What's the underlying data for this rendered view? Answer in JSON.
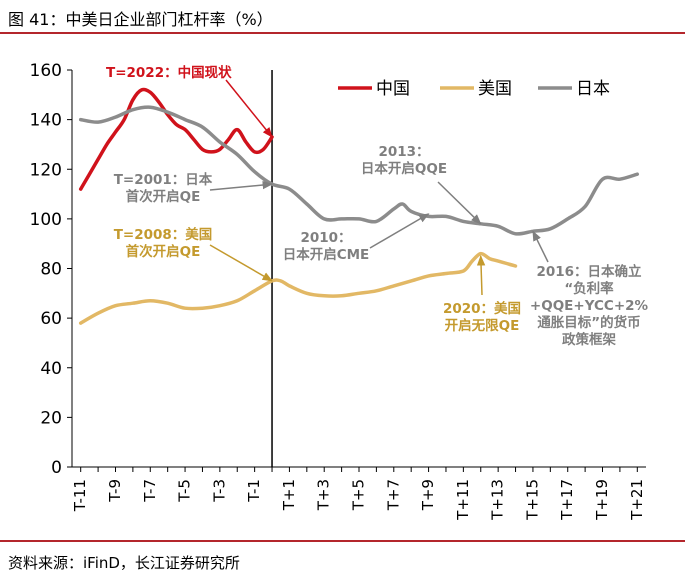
{
  "figure_title": "图 41：中美日企业部门杠杆率（%）",
  "source": "资料来源：iFinD，长江证券研究所",
  "colors": {
    "china": "#d0121b",
    "us": "#e2b865",
    "japan": "#8c8c8c",
    "us_annotation": "#c49a2e",
    "china_annotation": "#d0121b",
    "japan_annotation": "#7f7f7f",
    "rule": "#b4262c"
  },
  "chart_data": {
    "type": "line",
    "title": "中美日企业部门杠杆率（%）",
    "xlabel": "",
    "ylabel": "",
    "ylim": [
      0,
      160
    ],
    "yticks": [
      0,
      20,
      40,
      60,
      80,
      100,
      120,
      140,
      160
    ],
    "xlim": [
      -11.5,
      21.5
    ],
    "x_tick_values": [
      -11,
      -9,
      -7,
      -5,
      -3,
      -1,
      1,
      3,
      5,
      7,
      9,
      11,
      13,
      15,
      17,
      19,
      21
    ],
    "x_tick_labels": [
      "T-11",
      "T-9",
      "T-7",
      "T-5",
      "T-3",
      "T-1",
      "T+1",
      "T+3",
      "T+5",
      "T+7",
      "T+9",
      "T+11",
      "T+13",
      "T+15",
      "T+17",
      "T+19",
      "T+21"
    ],
    "reference_line_x": 0,
    "legend": [
      "中国",
      "美国",
      "日本"
    ],
    "legend_position": "top-right",
    "series": [
      {
        "key": "china",
        "name": "中国",
        "x": [
          -11,
          -10.5,
          -10,
          -9.5,
          -9,
          -8.5,
          -8,
          -7.5,
          -7,
          -6.5,
          -6,
          -5.5,
          -5,
          -4.5,
          -4,
          -3.5,
          -3,
          -2.5,
          -2,
          -1.5,
          -1,
          -0.5,
          0
        ],
        "values": [
          112,
          118,
          124,
          130,
          135,
          140,
          148,
          152,
          151,
          147,
          142,
          138,
          136,
          132,
          128,
          127,
          128,
          132,
          136,
          131,
          127,
          128,
          133
        ]
      },
      {
        "key": "us",
        "name": "美国",
        "x": [
          -11,
          -10,
          -9,
          -8,
          -7,
          -6,
          -5,
          -4,
          -3,
          -2,
          -1,
          0,
          0.5,
          1,
          2,
          3,
          4,
          5,
          6,
          7,
          8,
          9,
          10,
          11,
          11.5,
          12,
          12.5,
          13,
          13.5,
          14
        ],
        "values": [
          58,
          62,
          65,
          66,
          67,
          66,
          64,
          64,
          65,
          67,
          71,
          75,
          75,
          73,
          70,
          69,
          69,
          70,
          71,
          73,
          75,
          77,
          78,
          79,
          83,
          86,
          84,
          83,
          82,
          81
        ]
      },
      {
        "key": "japan",
        "name": "日本",
        "x": [
          -11,
          -10,
          -9,
          -8,
          -7,
          -6,
          -5,
          -4,
          -3,
          -2,
          -1,
          0,
          1,
          2,
          3,
          4,
          5,
          6,
          7,
          7.5,
          8,
          9,
          10,
          11,
          12,
          13,
          14,
          15,
          16,
          17,
          18,
          19,
          20,
          21
        ],
        "values": [
          140,
          139,
          141,
          144,
          145,
          143,
          140,
          137,
          131,
          126,
          119,
          114,
          112,
          106,
          100,
          100,
          100,
          99,
          104,
          106,
          103,
          101,
          101,
          99,
          98,
          97,
          94,
          95,
          96,
          100,
          105,
          116,
          116,
          118
        ]
      }
    ],
    "annotations": [
      {
        "id": "china-now",
        "text": [
          "T=2022：中国现状"
        ],
        "color_key": "china_annotation",
        "point": [
          0,
          133
        ]
      },
      {
        "id": "jp-2001",
        "text": [
          "T=2001：日本",
          "首次开启QE"
        ],
        "color_key": "japan_annotation",
        "point": [
          0,
          114
        ]
      },
      {
        "id": "jp-2013",
        "text": [
          "2013：",
          "日本开启QQE"
        ],
        "color_key": "japan_annotation",
        "point": [
          12,
          98
        ]
      },
      {
        "id": "jp-2010",
        "text": [
          "2010：",
          "日本开启CME"
        ],
        "color_key": "japan_annotation",
        "point": [
          9,
          102
        ]
      },
      {
        "id": "jp-2016",
        "text": [
          "2016：日本确立",
          "“负利率",
          "+QQE+YCC+2%",
          "通胀目标”的货币",
          "政策框架"
        ],
        "color_key": "japan_annotation",
        "point": [
          15,
          95
        ]
      },
      {
        "id": "us-2008",
        "text": [
          "T=2008：美国",
          "首次开启QE"
        ],
        "color_key": "us_annotation",
        "point": [
          0,
          75
        ]
      },
      {
        "id": "us-2020",
        "text": [
          "2020：美国",
          "开启无限QE"
        ],
        "color_key": "us_annotation",
        "point": [
          12,
          85
        ]
      }
    ]
  }
}
